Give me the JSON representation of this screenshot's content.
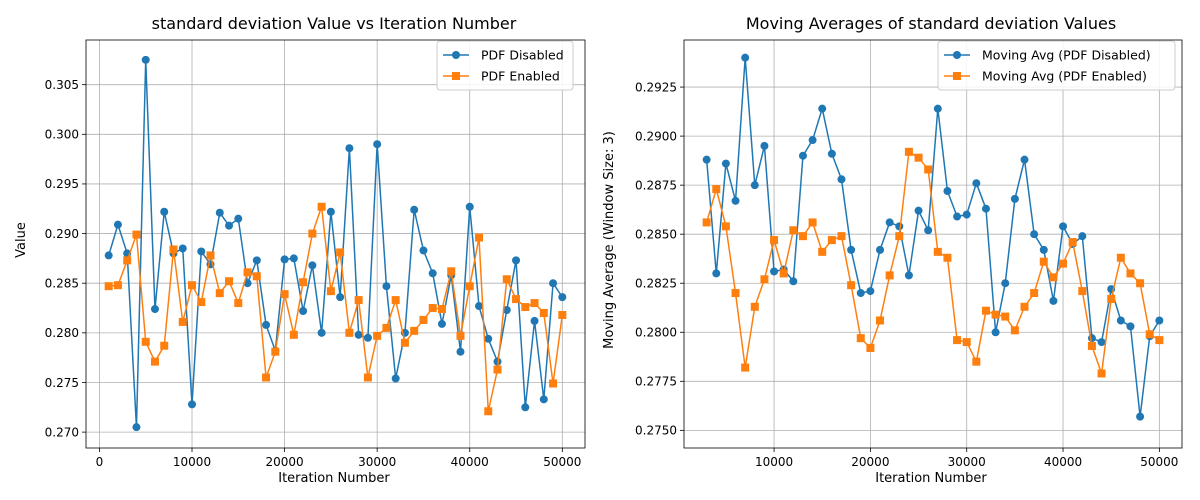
{
  "colors": {
    "disabled": "#1f77b4",
    "enabled": "#ff7f0e",
    "grid": "#b0b0b0"
  },
  "chart_data": [
    {
      "type": "line",
      "title": "standard deviation Value vs Iteration Number",
      "xlabel": "Iteration Number",
      "ylabel": "Value",
      "xlim": [
        -1450,
        52450
      ],
      "ylim": [
        0.2684,
        0.3095
      ],
      "xticks": [
        0,
        10000,
        20000,
        30000,
        40000,
        50000
      ],
      "yticks": [
        0.27,
        0.275,
        0.28,
        0.285,
        0.29,
        0.295,
        0.3,
        0.305
      ],
      "ytick_labels": [
        "0.270",
        "0.275",
        "0.280",
        "0.285",
        "0.290",
        "0.295",
        "0.300",
        "0.305"
      ],
      "grid": true,
      "legend_position": "top-right",
      "x": [
        1000,
        2000,
        3000,
        4000,
        5000,
        6000,
        7000,
        8000,
        9000,
        10000,
        11000,
        12000,
        13000,
        14000,
        15000,
        16000,
        17000,
        18000,
        19000,
        20000,
        21000,
        22000,
        23000,
        24000,
        25000,
        26000,
        27000,
        28000,
        29000,
        30000,
        31000,
        32000,
        33000,
        34000,
        35000,
        36000,
        37000,
        38000,
        39000,
        40000,
        41000,
        42000,
        43000,
        44000,
        45000,
        46000,
        47000,
        48000,
        49000,
        50000
      ],
      "series": [
        {
          "name": "PDF Disabled",
          "marker": "circle",
          "color": "#1f77b4",
          "values": [
            0.2878,
            0.2909,
            0.288,
            0.2705,
            0.3075,
            0.2824,
            0.2922,
            0.288,
            0.2885,
            0.2728,
            0.2882,
            0.2869,
            0.2921,
            0.2908,
            0.2915,
            0.285,
            0.2873,
            0.2808,
            0.2782,
            0.2874,
            0.2875,
            0.2822,
            0.2868,
            0.28,
            0.2922,
            0.2836,
            0.2986,
            0.2798,
            0.2795,
            0.299,
            0.2847,
            0.2754,
            0.28,
            0.2924,
            0.2883,
            0.286,
            0.2809,
            0.2858,
            0.2781,
            0.2927,
            0.2827,
            0.2794,
            0.2771,
            0.2823,
            0.2873,
            0.2725,
            0.2812,
            0.2733,
            0.285,
            0.2836
          ]
        },
        {
          "name": "PDF Enabled",
          "marker": "square",
          "color": "#ff7f0e",
          "values": [
            0.2847,
            0.2848,
            0.2873,
            0.2899,
            0.2791,
            0.2771,
            0.2787,
            0.2884,
            0.2811,
            0.2848,
            0.2831,
            0.2878,
            0.284,
            0.2852,
            0.283,
            0.2861,
            0.2857,
            0.2755,
            0.2781,
            0.2839,
            0.2798,
            0.2851,
            0.29,
            0.2927,
            0.2842,
            0.2881,
            0.28,
            0.2833,
            0.2755,
            0.2797,
            0.2805,
            0.2833,
            0.279,
            0.2802,
            0.2813,
            0.2825,
            0.2824,
            0.2862,
            0.2797,
            0.2847,
            0.2896,
            0.2721,
            0.2763,
            0.2854,
            0.2834,
            0.2826,
            0.283,
            0.282,
            0.2749,
            0.2818
          ]
        }
      ]
    },
    {
      "type": "line",
      "title": "Moving Averages of standard deviation Values",
      "xlabel": "Iteration Number",
      "ylabel": "Moving Average (Window Size: 3)",
      "xlim": [
        650,
        52350
      ],
      "ylim": [
        0.2741,
        0.2949
      ],
      "xticks": [
        10000,
        20000,
        30000,
        40000,
        50000
      ],
      "yticks": [
        0.275,
        0.2775,
        0.28,
        0.2825,
        0.285,
        0.2875,
        0.29,
        0.2925
      ],
      "ytick_labels": [
        "0.2750",
        "0.2775",
        "0.2800",
        "0.2825",
        "0.2850",
        "0.2875",
        "0.2900",
        "0.2925"
      ],
      "grid": true,
      "legend_position": "top-right",
      "x": [
        3000,
        4000,
        5000,
        6000,
        7000,
        8000,
        9000,
        10000,
        11000,
        12000,
        13000,
        14000,
        15000,
        16000,
        17000,
        18000,
        19000,
        20000,
        21000,
        22000,
        23000,
        24000,
        25000,
        26000,
        27000,
        28000,
        29000,
        30000,
        31000,
        32000,
        33000,
        34000,
        35000,
        36000,
        37000,
        38000,
        39000,
        40000,
        41000,
        42000,
        43000,
        44000,
        45000,
        46000,
        47000,
        48000,
        49000,
        50000
      ],
      "series": [
        {
          "name": "Moving Avg (PDF Disabled)",
          "marker": "circle",
          "color": "#1f77b4",
          "values": [
            0.2888,
            0.283,
            0.2886,
            0.2867,
            0.294,
            0.2875,
            0.2895,
            0.2831,
            0.2832,
            0.2826,
            0.289,
            0.2898,
            0.2914,
            0.2891,
            0.2878,
            0.2842,
            0.282,
            0.2821,
            0.2842,
            0.2856,
            0.2854,
            0.2829,
            0.2862,
            0.2852,
            0.2914,
            0.2872,
            0.2859,
            0.286,
            0.2876,
            0.2863,
            0.28,
            0.2825,
            0.2868,
            0.2888,
            0.285,
            0.2842,
            0.2816,
            0.2854,
            0.2845,
            0.2849,
            0.2797,
            0.2795,
            0.2822,
            0.2806,
            0.2803,
            0.2757,
            0.2798,
            0.2806
          ]
        },
        {
          "name": "Moving Avg (PDF Enabled)",
          "marker": "square",
          "color": "#ff7f0e",
          "values": [
            0.2856,
            0.2873,
            0.2854,
            0.282,
            0.2782,
            0.2813,
            0.2827,
            0.2847,
            0.283,
            0.2852,
            0.2849,
            0.2856,
            0.2841,
            0.2847,
            0.2849,
            0.2824,
            0.2797,
            0.2792,
            0.2806,
            0.2829,
            0.2849,
            0.2892,
            0.2889,
            0.2883,
            0.2841,
            0.2838,
            0.2796,
            0.2795,
            0.2785,
            0.2811,
            0.2809,
            0.2808,
            0.2801,
            0.2813,
            0.282,
            0.2836,
            0.2828,
            0.2835,
            0.2846,
            0.2821,
            0.2793,
            0.2779,
            0.2817,
            0.2838,
            0.283,
            0.2825,
            0.2799,
            0.2796
          ]
        }
      ]
    }
  ]
}
